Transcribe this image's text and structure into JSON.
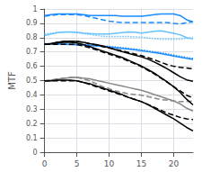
{
  "chart_data": {
    "type": "line",
    "ylabel": "MTF",
    "xlim": [
      0,
      23
    ],
    "ylim": [
      0,
      1.0
    ],
    "xticks": [
      0,
      5,
      10,
      15,
      20
    ],
    "yticks": [
      0,
      0.1,
      0.2,
      0.3,
      0.4,
      0.5,
      0.6,
      0.7,
      0.8,
      0.9,
      1
    ],
    "grid": true,
    "series": [
      {
        "color": "#1a8cff",
        "line_style": "solid",
        "x": [
          0,
          1,
          2,
          3,
          4,
          5,
          6,
          7,
          8,
          9,
          10,
          11,
          12,
          13,
          14,
          15,
          16,
          17,
          18,
          19,
          20,
          21,
          22,
          23
        ],
        "values": [
          0.955,
          0.96,
          0.965,
          0.965,
          0.965,
          0.965,
          0.96,
          0.955,
          0.955,
          0.955,
          0.955,
          0.955,
          0.95,
          0.95,
          0.95,
          0.95,
          0.955,
          0.96,
          0.965,
          0.965,
          0.965,
          0.955,
          0.925,
          0.91
        ]
      },
      {
        "color": "#1a8cff",
        "line_style": "dashed",
        "x": [
          0,
          1,
          2,
          3,
          4,
          5,
          6,
          7,
          8,
          9,
          10,
          11,
          12,
          13,
          14,
          15,
          16,
          17,
          18,
          19,
          20,
          21,
          22,
          23
        ],
        "values": [
          0.95,
          0.955,
          0.96,
          0.96,
          0.96,
          0.96,
          0.955,
          0.945,
          0.935,
          0.925,
          0.915,
          0.91,
          0.905,
          0.905,
          0.905,
          0.905,
          0.905,
          0.905,
          0.905,
          0.905,
          0.9,
          0.895,
          0.905,
          0.91
        ]
      },
      {
        "color": "#66c2ff",
        "line_style": "solid",
        "x": [
          0,
          1,
          2,
          3,
          4,
          5,
          6,
          7,
          8,
          9,
          10,
          11,
          12,
          13,
          14,
          15,
          16,
          17,
          18,
          19,
          20,
          21,
          22,
          23
        ],
        "values": [
          0.815,
          0.825,
          0.835,
          0.84,
          0.84,
          0.838,
          0.832,
          0.828,
          0.825,
          0.825,
          0.825,
          0.83,
          0.835,
          0.84,
          0.838,
          0.832,
          0.838,
          0.844,
          0.848,
          0.84,
          0.83,
          0.82,
          0.8,
          0.79
        ]
      },
      {
        "color": "#66c2ff",
        "line_style": "dotted",
        "x": [
          0,
          1,
          2,
          3,
          4,
          5,
          6,
          7,
          8,
          9,
          10,
          11,
          12,
          13,
          14,
          15,
          16,
          17,
          18,
          19,
          20,
          21,
          22,
          23
        ],
        "values": [
          0.825,
          0.83,
          0.835,
          0.838,
          0.838,
          0.835,
          0.828,
          0.822,
          0.815,
          0.81,
          0.808,
          0.808,
          0.808,
          0.808,
          0.805,
          0.803,
          0.798,
          0.793,
          0.79,
          0.79,
          0.79,
          0.79,
          0.795,
          0.8
        ]
      },
      {
        "color": "#1a8cff",
        "line_style": "solid",
        "x": [
          0,
          2,
          4,
          6,
          8,
          10,
          12,
          14,
          16,
          18,
          20,
          22,
          23
        ],
        "values": [
          0.755,
          0.754,
          0.752,
          0.748,
          0.742,
          0.735,
          0.725,
          0.715,
          0.702,
          0.688,
          0.672,
          0.655,
          0.648
        ]
      },
      {
        "color": "#1a8cff",
        "line_style": "dotted",
        "x": [
          0,
          2,
          4,
          6,
          8,
          10,
          12,
          14,
          16,
          18,
          20,
          22,
          23
        ],
        "values": [
          0.758,
          0.757,
          0.755,
          0.752,
          0.746,
          0.739,
          0.73,
          0.72,
          0.708,
          0.694,
          0.678,
          0.662,
          0.655
        ]
      },
      {
        "color": "#000000",
        "line_style": "solid",
        "x": [
          0,
          1,
          2,
          3,
          4,
          5,
          6,
          7,
          8,
          9,
          10,
          11,
          12,
          13,
          14,
          15,
          16,
          17,
          18,
          19,
          20,
          21,
          22,
          23
        ],
        "values": [
          0.753,
          0.758,
          0.768,
          0.773,
          0.775,
          0.774,
          0.768,
          0.758,
          0.752,
          0.742,
          0.73,
          0.715,
          0.703,
          0.69,
          0.678,
          0.666,
          0.65,
          0.63,
          0.607,
          0.582,
          0.555,
          0.528,
          0.505,
          0.495
        ]
      },
      {
        "color": "#000000",
        "line_style": "dashed",
        "x": [
          0,
          1,
          2,
          3,
          4,
          5,
          6,
          7,
          8,
          9,
          10,
          11,
          12,
          13,
          14,
          15,
          16,
          17,
          18,
          19,
          20,
          21,
          22,
          23
        ],
        "values": [
          0.753,
          0.758,
          0.768,
          0.773,
          0.775,
          0.774,
          0.768,
          0.758,
          0.748,
          0.738,
          0.728,
          0.718,
          0.708,
          0.697,
          0.686,
          0.675,
          0.66,
          0.645,
          0.628,
          0.612,
          0.6,
          0.593,
          0.588,
          0.583
        ]
      },
      {
        "color": "#888888",
        "line_style": "solid",
        "x": [
          0,
          1,
          2,
          3,
          4,
          5,
          6,
          7,
          8,
          9,
          10,
          11,
          12,
          13,
          14,
          15,
          16,
          17,
          18,
          19,
          20,
          21,
          22,
          23
        ],
        "values": [
          0.498,
          0.503,
          0.51,
          0.515,
          0.52,
          0.523,
          0.518,
          0.512,
          0.502,
          0.492,
          0.482,
          0.472,
          0.462,
          0.452,
          0.442,
          0.432,
          0.418,
          0.403,
          0.388,
          0.373,
          0.358,
          0.338,
          0.308,
          0.288
        ]
      },
      {
        "color": "#888888",
        "line_style": "dashed",
        "x": [
          0,
          1,
          2,
          3,
          4,
          5,
          6,
          7,
          8,
          9,
          10,
          11,
          12,
          13,
          14,
          15,
          16,
          17,
          18,
          19,
          20,
          21,
          22,
          23
        ],
        "values": [
          0.498,
          0.503,
          0.513,
          0.518,
          0.522,
          0.522,
          0.512,
          0.498,
          0.478,
          0.458,
          0.443,
          0.428,
          0.418,
          0.408,
          0.403,
          0.398,
          0.388,
          0.378,
          0.368,
          0.363,
          0.358,
          0.353,
          0.353,
          0.358
        ]
      },
      {
        "color": "#000000",
        "line_style": "solid",
        "x": [
          0,
          1,
          2,
          3,
          4,
          5,
          6,
          7,
          8,
          9,
          10,
          11,
          12,
          13,
          14,
          15,
          16,
          17,
          18,
          19,
          20,
          21,
          22,
          23
        ],
        "values": [
          0.753,
          0.758,
          0.763,
          0.768,
          0.768,
          0.763,
          0.752,
          0.737,
          0.722,
          0.707,
          0.692,
          0.677,
          0.662,
          0.642,
          0.622,
          0.602,
          0.577,
          0.552,
          0.522,
          0.492,
          0.457,
          0.418,
          0.37,
          0.33
        ]
      },
      {
        "color": "#000000",
        "line_style": "dashed",
        "x": [
          0,
          1,
          2,
          3,
          4,
          5,
          6,
          7,
          8,
          9,
          10,
          11,
          12,
          13,
          14,
          15,
          16,
          17,
          18,
          19,
          20,
          21,
          22,
          23
        ],
        "values": [
          0.753,
          0.753,
          0.753,
          0.753,
          0.753,
          0.752,
          0.742,
          0.73,
          0.715,
          0.7,
          0.685,
          0.67,
          0.655,
          0.636,
          0.617,
          0.597,
          0.572,
          0.547,
          0.518,
          0.488,
          0.458,
          0.428,
          0.398,
          0.378
        ]
      },
      {
        "color": "#000000",
        "line_style": "solid",
        "x": [
          0,
          1,
          2,
          3,
          4,
          5,
          6,
          7,
          8,
          9,
          10,
          11,
          12,
          13,
          14,
          15,
          16,
          17,
          18,
          19,
          20,
          21,
          22,
          23
        ],
        "values": [
          0.498,
          0.498,
          0.503,
          0.503,
          0.503,
          0.498,
          0.488,
          0.478,
          0.463,
          0.448,
          0.433,
          0.418,
          0.403,
          0.383,
          0.368,
          0.353,
          0.333,
          0.308,
          0.283,
          0.258,
          0.233,
          0.203,
          0.173,
          0.148
        ]
      },
      {
        "color": "#000000",
        "line_style": "dashed",
        "x": [
          0,
          1,
          2,
          3,
          4,
          5,
          6,
          7,
          8,
          9,
          10,
          11,
          12,
          13,
          14,
          15,
          16,
          17,
          18,
          19,
          20,
          21,
          22,
          23
        ],
        "values": [
          0.498,
          0.498,
          0.498,
          0.498,
          0.498,
          0.498,
          0.488,
          0.473,
          0.458,
          0.443,
          0.428,
          0.413,
          0.398,
          0.383,
          0.368,
          0.353,
          0.333,
          0.313,
          0.293,
          0.273,
          0.258,
          0.243,
          0.233,
          0.228
        ]
      }
    ]
  }
}
